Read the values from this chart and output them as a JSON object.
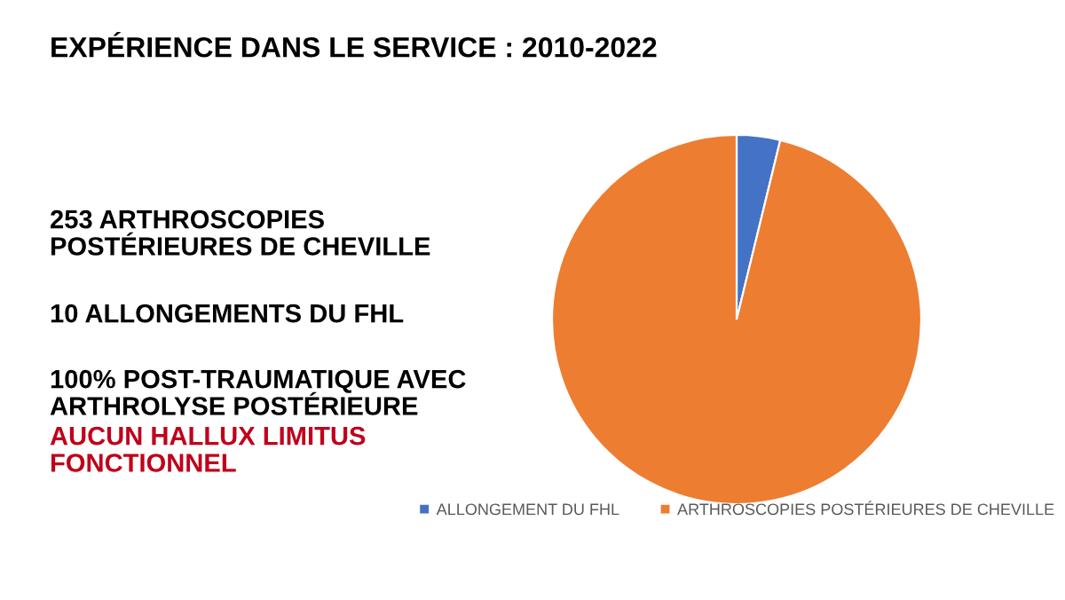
{
  "chart_data": {
    "type": "pie",
    "title": "EXPÉRIENCE DANS LE SERVICE : 2010-2022",
    "categories": [
      "ALLONGEMENT DU FHL",
      "ARTHROSCOPIES POSTÉRIEURES DE CHEVILLE"
    ],
    "values": [
      3.8,
      96.2
    ],
    "colors": [
      "#4472c4",
      "#ed7d31"
    ],
    "legend": "bottom",
    "annotations": [
      "253 ARTHROSCOPIES\nPOSTÉRIEURES DE CHEVILLE",
      "10 ALLONGEMENTS DU FHL",
      "100% POST-TRAUMATIQUE AVEC\nARTHROLYSE POSTÉRIEURE",
      "AUCUN HALLUX LIMITUS\nFONCTIONNEL"
    ]
  }
}
